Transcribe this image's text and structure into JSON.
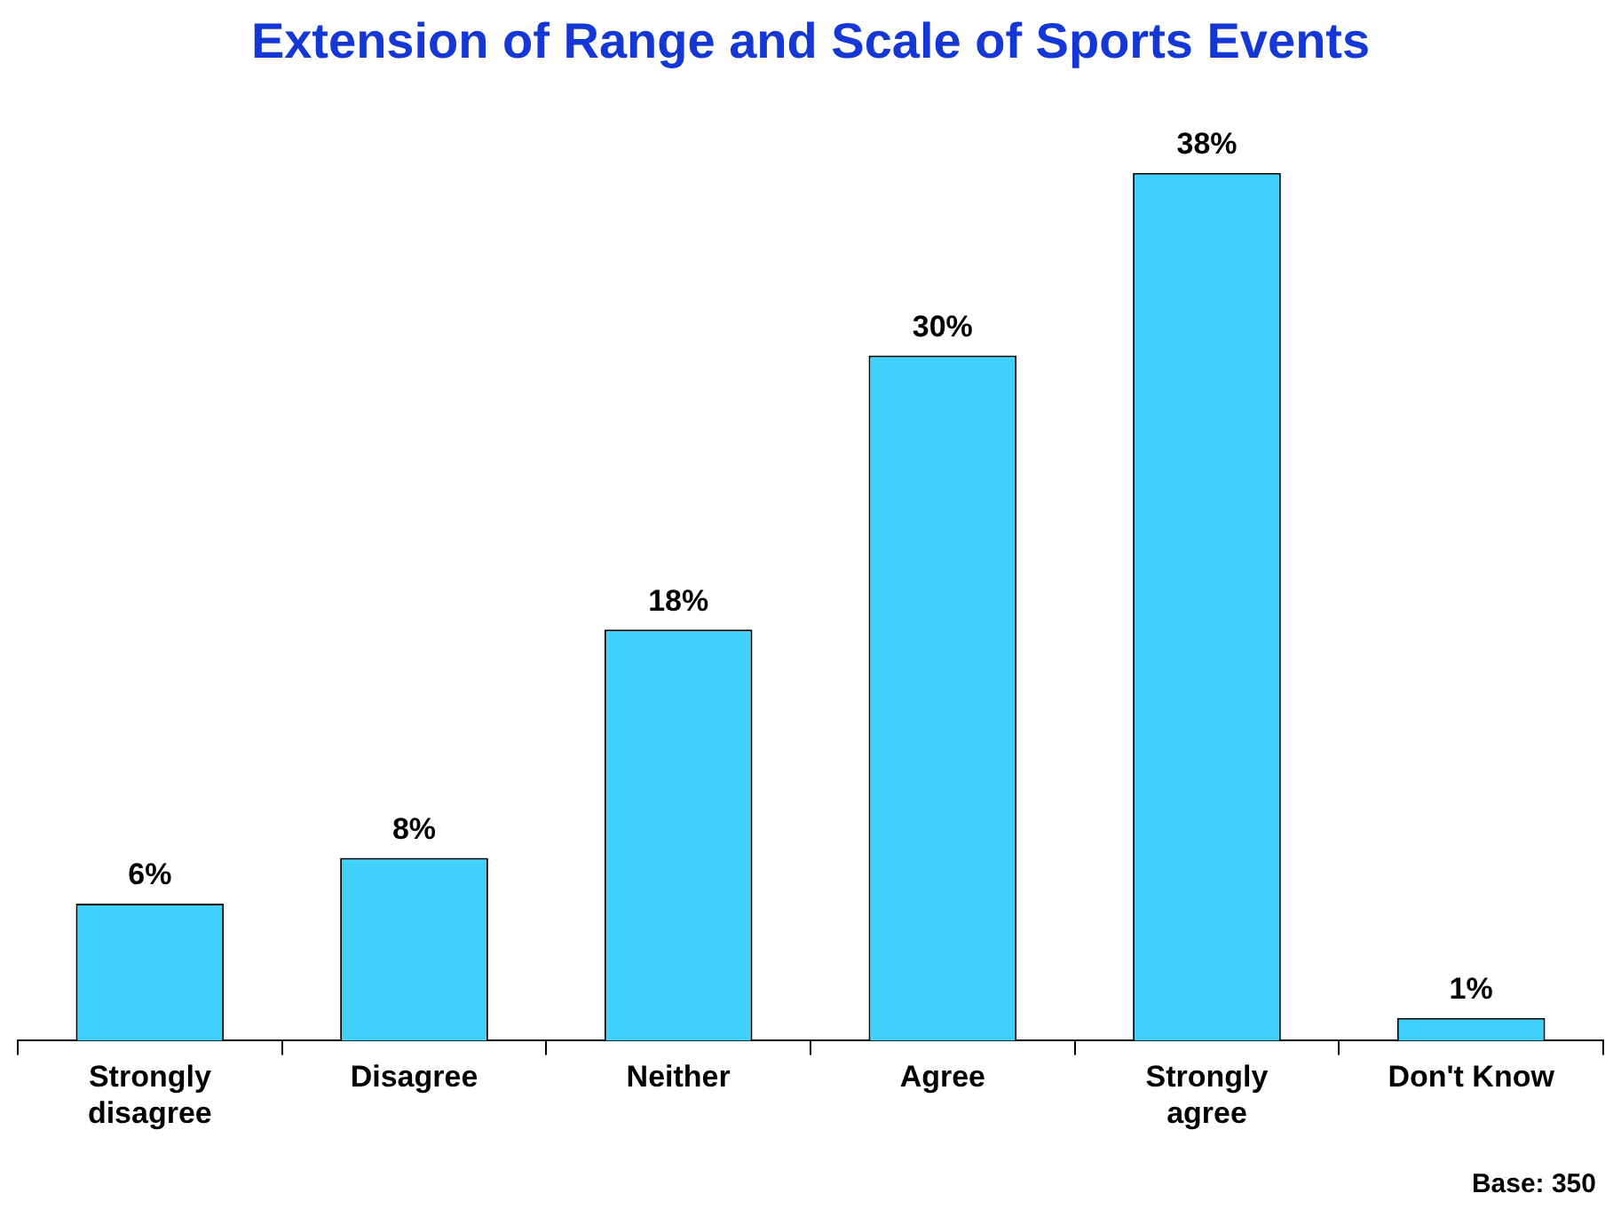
{
  "chart_data": {
    "type": "bar",
    "title": "Extension of Range and Scale of Sports Events",
    "categories": [
      "Strongly disagree",
      "Disagree",
      "Neither",
      "Agree",
      "Strongly agree",
      "Don't Know"
    ],
    "values": [
      6,
      8,
      18,
      30,
      38,
      1
    ],
    "value_labels": [
      "6%",
      "8%",
      "18%",
      "30%",
      "38%",
      "1%"
    ],
    "color": "#3fd0fb",
    "annotations": [
      "Base: 350"
    ],
    "legend": false,
    "grid": false
  }
}
